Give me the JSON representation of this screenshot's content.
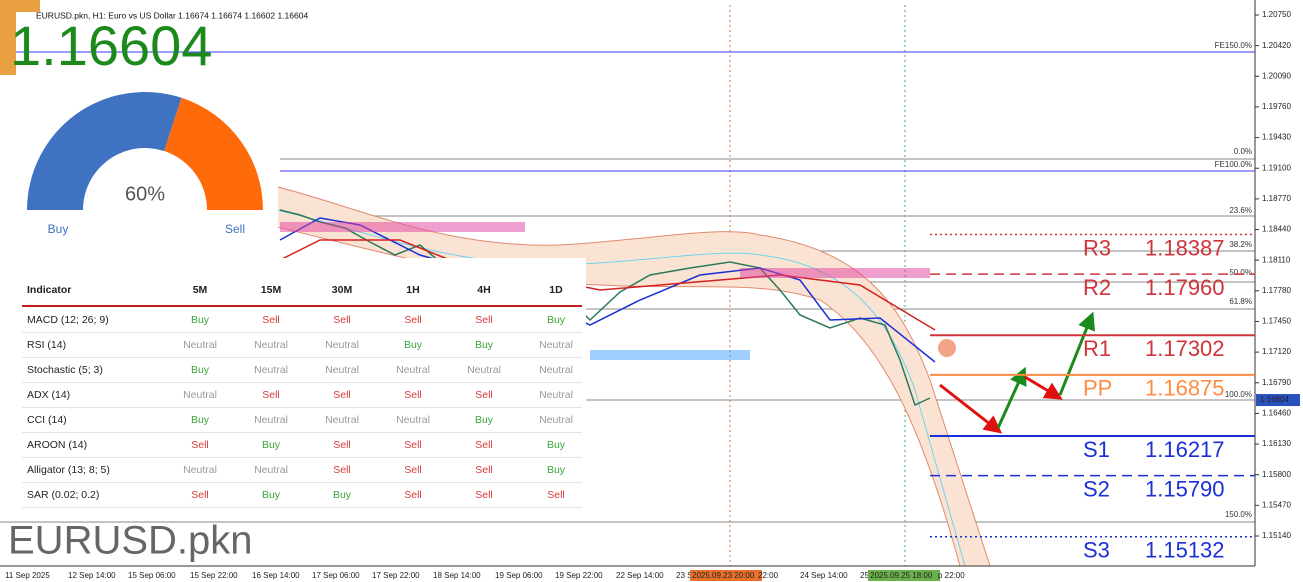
{
  "header": {
    "caption": "EURUSD.pkn, H1:  Euro vs US Dollar  1.16674 1.16674 1.16602 1.16604",
    "price": "1.16604",
    "watermark": "EURUSD.pkn"
  },
  "gauge": {
    "value": 60,
    "label": "60%",
    "buy_label": "Buy",
    "sell_label": "Sell",
    "buy_color": "#3f72c0",
    "sell_color": "#ff6a0a"
  },
  "table": {
    "header": [
      "Indicator",
      "5M",
      "15M",
      "30M",
      "1H",
      "4H",
      "1D"
    ],
    "rows": [
      [
        "MACD (12; 26; 9)",
        "Buy",
        "Sell",
        "Sell",
        "Sell",
        "Sell",
        "Buy"
      ],
      [
        "RSI (14)",
        "Neutral",
        "Neutral",
        "Neutral",
        "Buy",
        "Buy",
        "Neutral"
      ],
      [
        "Stochastic (5; 3)",
        "Buy",
        "Neutral",
        "Neutral",
        "Neutral",
        "Neutral",
        "Neutral"
      ],
      [
        "ADX (14)",
        "Neutral",
        "Sell",
        "Sell",
        "Sell",
        "Sell",
        "Neutral"
      ],
      [
        "CCI (14)",
        "Buy",
        "Neutral",
        "Neutral",
        "Neutral",
        "Buy",
        "Neutral"
      ],
      [
        "AROON (14)",
        "Sell",
        "Buy",
        "Sell",
        "Sell",
        "Sell",
        "Buy"
      ],
      [
        "Alligator (13; 8; 5)",
        "Neutral",
        "Neutral",
        "Sell",
        "Sell",
        "Sell",
        "Buy"
      ],
      [
        "SAR (0.02; 0.2)",
        "Sell",
        "Buy",
        "Buy",
        "Sell",
        "Sell",
        "Sell"
      ]
    ],
    "signal_colors": {
      "Buy": "#3aa63a",
      "Sell": "#d83a3a",
      "Neutral": "#999999"
    }
  },
  "price_axis": {
    "ylim": [
      1.2075,
      1.1514
    ],
    "ticks": [
      {
        "value": 1.2075,
        "label": "1.20750"
      },
      {
        "value": 1.2042,
        "label": "1.20420"
      },
      {
        "value": 1.2009,
        "label": "1.20090"
      },
      {
        "value": 1.1976,
        "label": "1.19760"
      },
      {
        "value": 1.1943,
        "label": "1.19430"
      },
      {
        "value": 1.191,
        "label": "1.19100"
      },
      {
        "value": 1.1877,
        "label": "1.18770"
      },
      {
        "value": 1.1844,
        "label": "1.18440"
      },
      {
        "value": 1.1811,
        "label": "1.18110"
      },
      {
        "value": 1.1778,
        "label": "1.17780"
      },
      {
        "value": 1.1745,
        "label": "1.17450"
      },
      {
        "value": 1.1712,
        "label": "1.17120"
      },
      {
        "value": 1.1679,
        "label": "1.16790"
      },
      {
        "value": 1.1646,
        "label": "1.16460"
      },
      {
        "value": 1.1613,
        "label": "1.16130"
      },
      {
        "value": 1.158,
        "label": "1.15800"
      },
      {
        "value": 1.1547,
        "label": "1.15470"
      },
      {
        "value": 1.1514,
        "label": "1.15140"
      }
    ],
    "current": {
      "value": 1.16604,
      "label": "1.16604"
    }
  },
  "pivots": [
    {
      "name": "R3",
      "value": 1.18387,
      "color": "#d0333a",
      "style": "dotted"
    },
    {
      "name": "R2",
      "value": 1.1796,
      "label": "1.17960",
      "color": "#d0333a",
      "style": "dashed"
    },
    {
      "name": "R1",
      "value": 1.17302,
      "color": "#d0333a",
      "style": "solid"
    },
    {
      "name": "PP",
      "value": 1.16875,
      "color": "#ff8c40",
      "style": "solid"
    },
    {
      "name": "S1",
      "value": 1.16217,
      "color": "#1a2fd6",
      "style": "solid"
    },
    {
      "name": "S2",
      "value": 1.1579,
      "label": "1.15790",
      "color": "#1a2fd6",
      "style": "dashed"
    },
    {
      "name": "S3",
      "value": 1.15132,
      "color": "#1a2fd6",
      "style": "dotted"
    }
  ],
  "fib_labels": [
    "FE150.0%",
    "FE100.0%",
    "0.0%",
    "23.6%",
    "38.2%",
    "50.0%",
    "61.8%",
    "100.0%",
    "150.0%"
  ],
  "time_labels": [
    "11 Sep 2025",
    "12 Sep 14:00",
    "15 Sep 06:00",
    "15 Sep 22:00",
    "16 Sep 14:00",
    "17 Sep 06:00",
    "17 Sep 22:00",
    "18 Sep 14:00",
    "19 Sep 06:00",
    "19 Sep 22:00",
    "22 Sep 14:00",
    "23 S",
    "2025.09.23 20:00",
    "22:00",
    "24 Sep 14:00",
    "25",
    "2025.09.25 18:00",
    "p 22:00"
  ]
}
